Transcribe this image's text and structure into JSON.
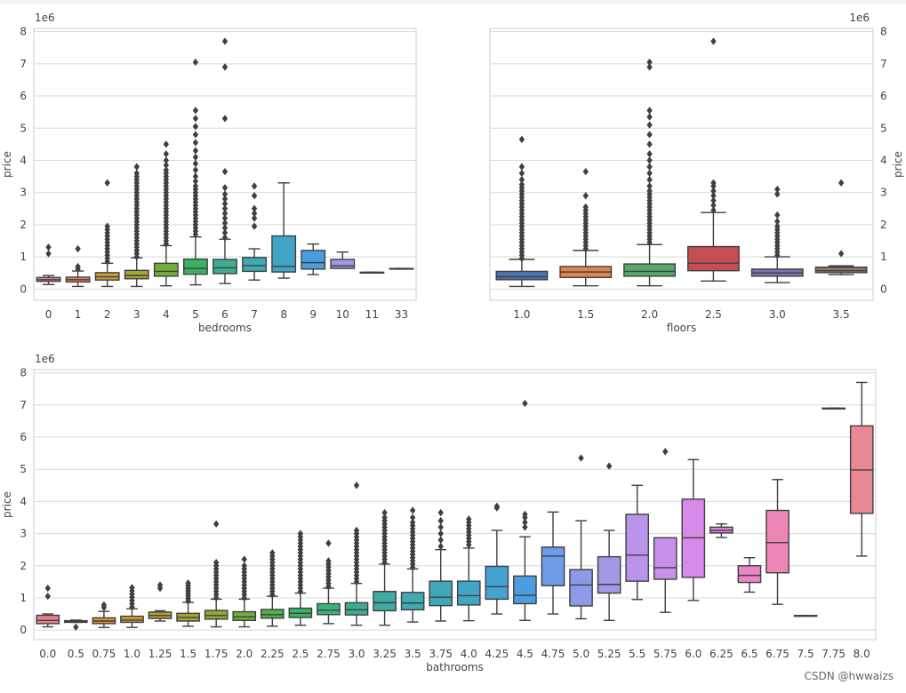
{
  "watermark": "CSDN @hwwaizs",
  "colors": {
    "panel_bg": "#eaeaf2",
    "grid": "#d8d8d8",
    "text": "#444444",
    "line": "#3f3f3f",
    "palette13": [
      "#e8818e",
      "#e58755",
      "#c99b3b",
      "#a8a433",
      "#6fae39",
      "#3ab264",
      "#3dad92",
      "#3faab0",
      "#41a6c6",
      "#4a9ee0",
      "#a09ae6",
      "#d88aea",
      "#ea85c6"
    ],
    "palette6": [
      "#4c72b0",
      "#dd8452",
      "#55a868",
      "#c44e52",
      "#8172b3",
      "#937860"
    ],
    "palette30": [
      "#e8818e",
      "#e58755",
      "#d8913f",
      "#c99b3b",
      "#b8a034",
      "#a8a433",
      "#8eaa34",
      "#6fae39",
      "#4db146",
      "#3ab264",
      "#3cb17d",
      "#3dad92",
      "#3eaca2",
      "#3faab0",
      "#40a8bb",
      "#41a6c6",
      "#44a3d3",
      "#4a9ee0",
      "#6e9ce8",
      "#8d9ae8",
      "#a09ae6",
      "#b895e8",
      "#c890ea",
      "#d88aea",
      "#e286dc",
      "#ea85c6",
      "#ec87b5",
      "#ec88a8",
      "#ec899d",
      "#e98895"
    ]
  },
  "chart_data": [
    {
      "type": "box",
      "title": "",
      "xlabel": "bedrooms",
      "ylabel": "price",
      "y_scale_label": "1e6",
      "y_axis_side": "left",
      "ylim": [
        -0.35,
        8.1
      ],
      "yticks": [
        0,
        1,
        2,
        3,
        4,
        5,
        6,
        7,
        8
      ],
      "categories": [
        "0",
        "1",
        "2",
        "3",
        "4",
        "5",
        "6",
        "7",
        "8",
        "9",
        "10",
        "11",
        "33"
      ],
      "boxes": [
        {
          "q1": 0.24,
          "med": 0.29,
          "q3": 0.36,
          "wlo": 0.14,
          "whi": 0.42,
          "outliers": [
            1.1,
            1.3
          ]
        },
        {
          "q1": 0.22,
          "med": 0.29,
          "q3": 0.37,
          "wlo": 0.08,
          "whi": 0.56,
          "outliers": [
            0.62,
            0.7,
            1.25
          ]
        },
        {
          "q1": 0.28,
          "med": 0.38,
          "q3": 0.51,
          "wlo": 0.08,
          "whi": 0.8,
          "outliers": [
            0.85,
            0.95,
            1.05,
            1.15,
            1.25,
            1.35,
            1.45,
            1.55,
            1.65,
            1.75,
            1.85,
            1.95,
            3.3
          ]
        },
        {
          "q1": 0.32,
          "med": 0.42,
          "q3": 0.58,
          "wlo": 0.08,
          "whi": 0.97,
          "outliers": [
            1.0,
            1.1,
            1.2,
            1.3,
            1.4,
            1.5,
            1.6,
            1.7,
            1.8,
            1.9,
            2.0,
            2.1,
            2.2,
            2.3,
            2.4,
            2.5,
            2.6,
            2.7,
            2.8,
            2.9,
            3.0,
            3.1,
            3.2,
            3.3,
            3.4,
            3.5,
            3.6,
            3.8
          ]
        },
        {
          "q1": 0.4,
          "med": 0.55,
          "q3": 0.8,
          "wlo": 0.1,
          "whi": 1.35,
          "outliers": [
            1.4,
            1.5,
            1.6,
            1.7,
            1.8,
            1.9,
            2.0,
            2.1,
            2.2,
            2.3,
            2.4,
            2.5,
            2.6,
            2.7,
            2.8,
            2.9,
            3.0,
            3.1,
            3.2,
            3.3,
            3.4,
            3.5,
            3.6,
            3.7,
            3.85,
            4.0,
            4.2,
            4.5
          ]
        },
        {
          "q1": 0.46,
          "med": 0.64,
          "q3": 0.93,
          "wlo": 0.13,
          "whi": 1.62,
          "outliers": [
            1.7,
            1.8,
            1.9,
            2.0,
            2.1,
            2.2,
            2.3,
            2.4,
            2.5,
            2.6,
            2.7,
            2.8,
            2.9,
            3.0,
            3.1,
            3.2,
            3.35,
            3.5,
            3.7,
            3.9,
            4.1,
            4.3,
            4.55,
            4.8,
            5.05,
            5.3,
            5.55,
            7.05
          ]
        },
        {
          "q1": 0.48,
          "med": 0.66,
          "q3": 0.92,
          "wlo": 0.17,
          "whi": 1.55,
          "outliers": [
            1.6,
            1.75,
            1.9,
            2.05,
            2.2,
            2.35,
            2.5,
            2.65,
            2.8,
            2.95,
            3.15,
            3.65,
            5.3,
            6.9,
            7.7
          ]
        },
        {
          "q1": 0.55,
          "med": 0.73,
          "q3": 0.98,
          "wlo": 0.28,
          "whi": 1.25,
          "outliers": [
            1.95,
            2.2,
            2.35,
            2.5,
            2.9,
            3.2
          ]
        },
        {
          "q1": 0.53,
          "med": 0.7,
          "q3": 1.65,
          "wlo": 0.34,
          "whi": 3.3,
          "outliers": []
        },
        {
          "q1": 0.62,
          "med": 0.82,
          "q3": 1.2,
          "wlo": 0.45,
          "whi": 1.4,
          "outliers": []
        },
        {
          "q1": 0.64,
          "med": 0.72,
          "q3": 0.92,
          "wlo": 0.65,
          "whi": 1.15,
          "outliers": []
        },
        {
          "q1": 0.52,
          "med": 0.52,
          "q3": 0.52,
          "wlo": 0.52,
          "whi": 0.52,
          "outliers": []
        },
        {
          "q1": 0.64,
          "med": 0.64,
          "q3": 0.64,
          "wlo": 0.64,
          "whi": 0.64,
          "outliers": []
        }
      ]
    },
    {
      "type": "box",
      "title": "",
      "xlabel": "floors",
      "ylabel": "price",
      "y_scale_label": "1e6",
      "y_axis_side": "right",
      "ylim": [
        -0.35,
        8.1
      ],
      "yticks": [
        0,
        1,
        2,
        3,
        4,
        5,
        6,
        7,
        8
      ],
      "categories": [
        "1.0",
        "1.5",
        "2.0",
        "2.5",
        "3.0",
        "3.5"
      ],
      "boxes": [
        {
          "q1": 0.29,
          "med": 0.38,
          "q3": 0.55,
          "wlo": 0.08,
          "whi": 0.92,
          "outliers": [
            0.95,
            1.05,
            1.15,
            1.25,
            1.35,
            1.45,
            1.55,
            1.65,
            1.75,
            1.85,
            1.95,
            2.05,
            2.15,
            2.25,
            2.35,
            2.45,
            2.55,
            2.65,
            2.75,
            2.85,
            2.95,
            3.05,
            3.15,
            3.25,
            3.4,
            3.6,
            3.8,
            4.65
          ]
        },
        {
          "q1": 0.36,
          "med": 0.53,
          "q3": 0.7,
          "wlo": 0.1,
          "whi": 1.2,
          "outliers": [
            1.25,
            1.35,
            1.45,
            1.55,
            1.65,
            1.75,
            1.85,
            1.95,
            2.05,
            2.15,
            2.25,
            2.35,
            2.45,
            2.55,
            2.9,
            3.65
          ]
        },
        {
          "q1": 0.4,
          "med": 0.55,
          "q3": 0.78,
          "wlo": 0.1,
          "whi": 1.38,
          "outliers": [
            1.45,
            1.55,
            1.65,
            1.75,
            1.85,
            1.95,
            2.05,
            2.15,
            2.25,
            2.35,
            2.45,
            2.55,
            2.65,
            2.75,
            2.85,
            2.95,
            3.05,
            3.2,
            3.4,
            3.6,
            3.8,
            4.0,
            4.2,
            4.5,
            4.8,
            5.1,
            5.35,
            5.55,
            6.9,
            7.05
          ]
        },
        {
          "q1": 0.57,
          "med": 0.8,
          "q3": 1.32,
          "wlo": 0.25,
          "whi": 2.38,
          "outliers": [
            2.45,
            2.6,
            2.75,
            2.9,
            3.05,
            3.2,
            3.3,
            7.7
          ]
        },
        {
          "q1": 0.4,
          "med": 0.5,
          "q3": 0.62,
          "wlo": 0.2,
          "whi": 1.0,
          "outliers": [
            1.05,
            1.15,
            1.25,
            1.35,
            1.45,
            1.55,
            1.65,
            1.75,
            1.85,
            1.95,
            2.1,
            2.3,
            2.95,
            3.1
          ]
        },
        {
          "q1": 0.51,
          "med": 0.57,
          "q3": 0.68,
          "wlo": 0.45,
          "whi": 0.72,
          "outliers": [
            1.1,
            3.3
          ]
        }
      ]
    },
    {
      "type": "box",
      "title": "",
      "xlabel": "bathrooms",
      "ylabel": "price",
      "y_scale_label": "1e6",
      "y_axis_side": "left",
      "ylim": [
        -0.3,
        8.1
      ],
      "yticks": [
        0,
        1,
        2,
        3,
        4,
        5,
        6,
        7,
        8
      ],
      "categories": [
        "0.0",
        "0.5",
        "0.75",
        "1.0",
        "1.25",
        "1.5",
        "1.75",
        "2.0",
        "2.25",
        "2.5",
        "2.75",
        "3.0",
        "3.25",
        "3.5",
        "3.75",
        "4.0",
        "4.25",
        "4.5",
        "4.75",
        "5.0",
        "5.25",
        "5.5",
        "5.75",
        "6.0",
        "6.25",
        "6.5",
        "6.75",
        "7.5",
        "7.75",
        "8.0"
      ],
      "boxes": [
        {
          "q1": 0.2,
          "med": 0.3,
          "q3": 0.46,
          "wlo": 0.1,
          "whi": 0.5,
          "outliers": [
            1.05,
            1.3
          ]
        },
        {
          "q1": 0.24,
          "med": 0.26,
          "q3": 0.29,
          "wlo": 0.24,
          "whi": 0.31,
          "outliers": [
            0.09
          ]
        },
        {
          "q1": 0.2,
          "med": 0.28,
          "q3": 0.38,
          "wlo": 0.08,
          "whi": 0.58,
          "outliers": [
            0.7,
            0.78
          ]
        },
        {
          "q1": 0.24,
          "med": 0.31,
          "q3": 0.43,
          "wlo": 0.08,
          "whi": 0.66,
          "outliers": [
            0.72,
            0.82,
            0.92,
            1.02,
            1.12,
            1.22,
            1.32
          ]
        },
        {
          "q1": 0.36,
          "med": 0.45,
          "q3": 0.56,
          "wlo": 0.28,
          "whi": 0.6,
          "outliers": [
            1.3,
            1.4
          ]
        },
        {
          "q1": 0.28,
          "med": 0.39,
          "q3": 0.52,
          "wlo": 0.12,
          "whi": 0.86,
          "outliers": [
            0.9,
            0.98,
            1.06,
            1.14,
            1.22,
            1.3,
            1.38,
            1.46
          ]
        },
        {
          "q1": 0.34,
          "med": 0.45,
          "q3": 0.61,
          "wlo": 0.1,
          "whi": 0.96,
          "outliers": [
            1.0,
            1.1,
            1.2,
            1.3,
            1.4,
            1.5,
            1.6,
            1.7,
            1.8,
            1.9,
            2.0,
            2.1,
            3.3
          ]
        },
        {
          "q1": 0.3,
          "med": 0.41,
          "q3": 0.57,
          "wlo": 0.1,
          "whi": 0.96,
          "outliers": [
            1.0,
            1.1,
            1.2,
            1.3,
            1.4,
            1.5,
            1.6,
            1.7,
            1.8,
            1.9,
            2.0,
            2.2
          ]
        },
        {
          "q1": 0.37,
          "med": 0.48,
          "q3": 0.64,
          "wlo": 0.12,
          "whi": 1.05,
          "outliers": [
            1.1,
            1.2,
            1.3,
            1.4,
            1.5,
            1.6,
            1.7,
            1.8,
            1.9,
            2.0,
            2.1,
            2.2,
            2.3,
            2.4
          ]
        },
        {
          "q1": 0.39,
          "med": 0.52,
          "q3": 0.68,
          "wlo": 0.15,
          "whi": 1.15,
          "outliers": [
            1.2,
            1.3,
            1.4,
            1.5,
            1.6,
            1.7,
            1.8,
            1.9,
            2.0,
            2.1,
            2.2,
            2.3,
            2.4,
            2.5,
            2.6,
            2.7,
            2.8,
            2.9,
            3.0
          ]
        },
        {
          "q1": 0.48,
          "med": 0.62,
          "q3": 0.82,
          "wlo": 0.2,
          "whi": 1.3,
          "outliers": [
            1.35,
            1.45,
            1.55,
            1.65,
            1.75,
            1.85,
            1.95,
            2.05,
            2.15,
            2.7
          ]
        },
        {
          "q1": 0.47,
          "med": 0.63,
          "q3": 0.85,
          "wlo": 0.15,
          "whi": 1.45,
          "outliers": [
            1.5,
            1.6,
            1.7,
            1.8,
            1.9,
            2.0,
            2.1,
            2.2,
            2.3,
            2.4,
            2.5,
            2.6,
            2.7,
            2.8,
            2.9,
            3.0,
            3.1,
            4.5
          ]
        },
        {
          "q1": 0.6,
          "med": 0.85,
          "q3": 1.2,
          "wlo": 0.15,
          "whi": 2.05,
          "outliers": [
            2.1,
            2.2,
            2.3,
            2.4,
            2.5,
            2.6,
            2.7,
            2.8,
            2.9,
            3.0,
            3.1,
            3.2,
            3.3,
            3.4,
            3.5,
            3.65
          ]
        },
        {
          "q1": 0.63,
          "med": 0.84,
          "q3": 1.17,
          "wlo": 0.25,
          "whi": 1.9,
          "outliers": [
            1.95,
            2.05,
            2.15,
            2.25,
            2.35,
            2.45,
            2.55,
            2.65,
            2.75,
            2.85,
            2.95,
            3.05,
            3.15,
            3.25,
            3.35,
            3.5,
            3.72
          ]
        },
        {
          "q1": 0.76,
          "med": 1.02,
          "q3": 1.52,
          "wlo": 0.28,
          "whi": 2.5,
          "outliers": [
            2.6,
            2.8,
            3.0,
            3.2,
            3.4,
            3.65
          ]
        },
        {
          "q1": 0.78,
          "med": 1.07,
          "q3": 1.52,
          "wlo": 0.29,
          "whi": 2.55,
          "outliers": [
            2.65,
            2.75,
            2.85,
            2.95,
            3.05,
            3.15,
            3.25,
            3.35,
            3.45
          ]
        },
        {
          "q1": 0.96,
          "med": 1.35,
          "q3": 1.98,
          "wlo": 0.5,
          "whi": 3.1,
          "outliers": [
            3.8,
            3.85
          ]
        },
        {
          "q1": 0.82,
          "med": 1.08,
          "q3": 1.68,
          "wlo": 0.3,
          "whi": 2.9,
          "outliers": [
            3.2,
            3.35,
            3.5,
            3.6,
            7.05
          ]
        },
        {
          "q1": 1.38,
          "med": 2.3,
          "q3": 2.58,
          "wlo": 0.5,
          "whi": 3.67,
          "outliers": []
        },
        {
          "q1": 0.75,
          "med": 1.4,
          "q3": 1.88,
          "wlo": 0.35,
          "whi": 3.4,
          "outliers": [
            5.35
          ]
        },
        {
          "q1": 1.15,
          "med": 1.42,
          "q3": 2.28,
          "wlo": 0.3,
          "whi": 3.1,
          "outliers": [
            5.1
          ]
        },
        {
          "q1": 1.52,
          "med": 2.33,
          "q3": 3.6,
          "wlo": 0.95,
          "whi": 4.5,
          "outliers": []
        },
        {
          "q1": 1.58,
          "med": 1.94,
          "q3": 2.87,
          "wlo": 0.55,
          "whi": 2.87,
          "outliers": [
            5.55
          ]
        },
        {
          "q1": 1.64,
          "med": 2.87,
          "q3": 4.07,
          "wlo": 0.92,
          "whi": 5.3,
          "outliers": []
        },
        {
          "q1": 3.02,
          "med": 3.1,
          "q3": 3.2,
          "wlo": 2.88,
          "whi": 3.3,
          "outliers": []
        },
        {
          "q1": 1.48,
          "med": 1.7,
          "q3": 2.0,
          "wlo": 1.18,
          "whi": 2.25,
          "outliers": []
        },
        {
          "q1": 1.78,
          "med": 2.72,
          "q3": 3.72,
          "wlo": 0.8,
          "whi": 4.68,
          "outliers": []
        },
        {
          "q1": 0.45,
          "med": 0.45,
          "q3": 0.45,
          "wlo": 0.45,
          "whi": 0.45,
          "outliers": []
        },
        {
          "q1": 6.9,
          "med": 6.9,
          "q3": 6.9,
          "wlo": 6.9,
          "whi": 6.9,
          "outliers": []
        },
        {
          "q1": 3.63,
          "med": 4.98,
          "q3": 6.35,
          "wlo": 2.3,
          "whi": 7.7,
          "outliers": []
        }
      ]
    }
  ]
}
